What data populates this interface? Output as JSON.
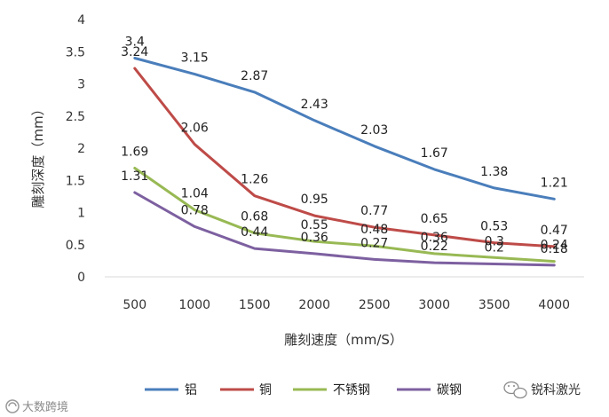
{
  "chart_data": {
    "type": "line",
    "title": "",
    "xlabel": "雕刻速度（mm/S）",
    "ylabel": "雕刻深度（mm）",
    "x": [
      500,
      1000,
      1500,
      2000,
      2500,
      3000,
      3500,
      4000
    ],
    "ylim": [
      0,
      4
    ],
    "yticks": [
      0,
      0.5,
      1,
      1.5,
      2,
      2.5,
      3,
      3.5,
      4
    ],
    "legend_position": "bottom",
    "series": [
      {
        "name": "铝",
        "color": "#4a7ebb",
        "values": [
          3.4,
          3.15,
          2.87,
          2.43,
          2.03,
          1.67,
          1.38,
          1.21
        ]
      },
      {
        "name": "铜",
        "color": "#be4b48",
        "values": [
          3.24,
          2.06,
          1.26,
          0.95,
          0.77,
          0.65,
          0.53,
          0.47
        ]
      },
      {
        "name": "不锈钢",
        "color": "#98b954",
        "values": [
          1.69,
          1.04,
          0.68,
          0.55,
          0.48,
          0.36,
          0.3,
          0.24
        ]
      },
      {
        "name": "碳钢",
        "color": "#7d60a0",
        "values": [
          1.31,
          0.78,
          0.44,
          0.36,
          0.27,
          0.22,
          0.2,
          0.18
        ]
      }
    ]
  },
  "watermarks": {
    "left": "大数跨境",
    "right": "锐科激光"
  }
}
